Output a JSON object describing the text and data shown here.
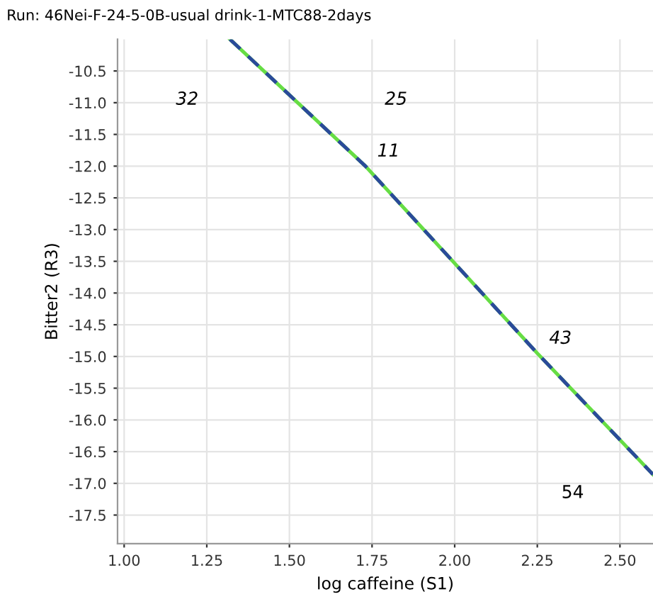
{
  "chart_data": {
    "type": "line",
    "title": "Run: 46Nei-F-24-5-0B-usual drink-1-MTC88-2days",
    "xlabel": "log caffeine (S1)",
    "ylabel": "Bitter2 (R3)",
    "x": [
      1.32,
      1.73,
      2.25,
      2.6
    ],
    "series": [
      {
        "color": "#66dd44",
        "values": [
          -10.0,
          -12.0,
          -14.95,
          -16.86
        ],
        "line_style": "solid"
      },
      {
        "color": "#2a4a9a",
        "values": [
          -10.0,
          -12.0,
          -14.95,
          -16.86
        ],
        "line_style": "dashed"
      }
    ],
    "annotations": [
      "32",
      "25",
      {
        "text": "11",
        "x": 1.73,
        "y": -12.0
      },
      {
        "text": "43",
        "x": 2.25,
        "y": -14.95
      },
      "54"
    ],
    "xlim": [
      0.98,
      2.6
    ],
    "ylim": [
      -17.95,
      -10.0
    ],
    "xticks": [
      {
        "value": 1.0,
        "label": "1.00"
      },
      1.25,
      {
        "value": 1.5,
        "label": "1.50"
      },
      1.75,
      {
        "value": 2.0,
        "label": "2.00"
      },
      2.25,
      {
        "value": 2.5,
        "label": "2.50"
      }
    ],
    "yticks": [
      -10.5,
      {
        "value": -11.0,
        "label": "-11.0"
      },
      -11.5,
      {
        "value": -12.0,
        "label": "-12.0"
      },
      -12.5,
      {
        "value": -13.0,
        "label": "-13.0"
      },
      -13.5,
      {
        "value": -14.0,
        "label": "-14.0"
      },
      -14.5,
      {
        "value": -15.0,
        "label": "-15.0"
      },
      -15.5,
      {
        "value": -16.0,
        "label": "-16.0"
      },
      -16.5,
      {
        "value": -17.0,
        "label": "-17.0"
      },
      -17.5
    ],
    "grid": true,
    "legend": false,
    "marker": "none"
  }
}
